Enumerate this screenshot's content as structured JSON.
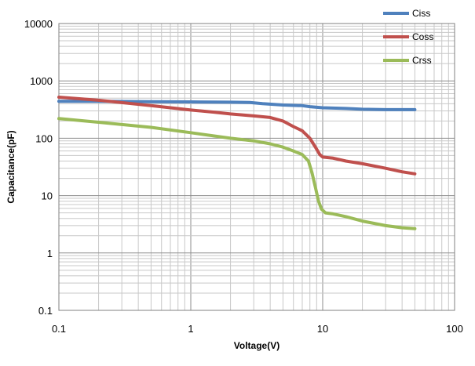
{
  "chart_data": {
    "type": "line",
    "title": "",
    "xlabel": "Voltage(V)",
    "ylabel": "Capacitance(pF)",
    "xscale": "log",
    "yscale": "log",
    "xlim": [
      0.1,
      100
    ],
    "ylim": [
      0.1,
      10000
    ],
    "xticks": [
      "0.1",
      "1",
      "10",
      "100"
    ],
    "yticks": [
      "0.1",
      "1",
      "10",
      "100",
      "1000",
      "10000"
    ],
    "grid": true,
    "legend_position": "top-right",
    "series": [
      {
        "name": "Ciss",
        "color": "#4f81bd",
        "points": [
          [
            0.1,
            440
          ],
          [
            0.2,
            440
          ],
          [
            0.5,
            435
          ],
          [
            1,
            430
          ],
          [
            2,
            425
          ],
          [
            2.8,
            420
          ],
          [
            3.5,
            400
          ],
          [
            5,
            380
          ],
          [
            7,
            370
          ],
          [
            8,
            355
          ],
          [
            10,
            340
          ],
          [
            15,
            330
          ],
          [
            20,
            320
          ],
          [
            30,
            315
          ],
          [
            50,
            315
          ]
        ]
      },
      {
        "name": "Coss",
        "color": "#c0504d",
        "points": [
          [
            0.1,
            520
          ],
          [
            0.2,
            460
          ],
          [
            0.5,
            370
          ],
          [
            1,
            310
          ],
          [
            1.5,
            285
          ],
          [
            2,
            265
          ],
          [
            3,
            245
          ],
          [
            4,
            230
          ],
          [
            5,
            200
          ],
          [
            6,
            160
          ],
          [
            7,
            135
          ],
          [
            8,
            100
          ],
          [
            8.8,
            70
          ],
          [
            9.5,
            52
          ],
          [
            10,
            47
          ],
          [
            12,
            45
          ],
          [
            15,
            40
          ],
          [
            20,
            36
          ],
          [
            30,
            30
          ],
          [
            40,
            26
          ],
          [
            50,
            24
          ]
        ]
      },
      {
        "name": "Crss",
        "color": "#9bbb59",
        "points": [
          [
            0.1,
            220
          ],
          [
            0.2,
            190
          ],
          [
            0.5,
            155
          ],
          [
            1,
            125
          ],
          [
            2,
            100
          ],
          [
            3,
            90
          ],
          [
            4,
            80
          ],
          [
            5,
            70
          ],
          [
            6,
            60
          ],
          [
            7,
            52
          ],
          [
            7.8,
            40
          ],
          [
            8.3,
            25
          ],
          [
            8.8,
            14
          ],
          [
            9.3,
            8
          ],
          [
            9.8,
            5.8
          ],
          [
            10.5,
            5
          ],
          [
            12,
            4.8
          ],
          [
            15,
            4.3
          ],
          [
            20,
            3.6
          ],
          [
            30,
            3
          ],
          [
            40,
            2.75
          ],
          [
            50,
            2.65
          ]
        ]
      }
    ]
  }
}
